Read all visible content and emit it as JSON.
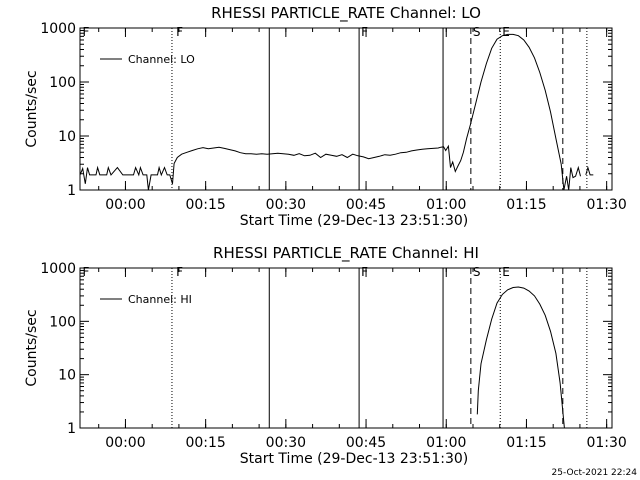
{
  "timestamp": "25-Oct-2021 22:24",
  "chart_data": [
    {
      "type": "line",
      "title": "RHESSI PARTICLE_RATE Channel: LO",
      "xlabel": "Start Time (29-Dec-13 23:51:30)",
      "ylabel": "Counts/sec",
      "y_scale": "log",
      "ylim": [
        1,
        1000
      ],
      "y_ticks": [
        "1",
        "10",
        "100",
        "1000"
      ],
      "x_ticks": [
        "00:00",
        "00:15",
        "00:30",
        "00:45",
        "01:00",
        "01:15",
        "01:30"
      ],
      "x_tick_minutes": [
        8.5,
        23.5,
        38.5,
        53.5,
        68.5,
        83.5,
        98.5
      ],
      "xlim_minutes": [
        0,
        99.5
      ],
      "legend": {
        "label": "Channel: LO",
        "position": "top-left"
      },
      "markers": [
        {
          "label": "F",
          "minute": 0.1,
          "style": "none"
        },
        {
          "label": "",
          "minute": 17.2,
          "style": "dotted"
        },
        {
          "label": "F",
          "minute": 17.6,
          "style": "none"
        },
        {
          "label": "",
          "minute": 35.4,
          "style": "solid"
        },
        {
          "label": "F",
          "minute": 52.2,
          "style": "solid"
        },
        {
          "label": "",
          "minute": 67.9,
          "style": "solid"
        },
        {
          "label": "S",
          "minute": 73.1,
          "style": "dashed"
        },
        {
          "label": "E",
          "minute": 78.6,
          "style": "dotted"
        },
        {
          "label": "",
          "minute": 90.3,
          "style": "dashed"
        },
        {
          "label": "",
          "minute": 94.8,
          "style": "dotted"
        }
      ],
      "series": [
        {
          "name": "Channel: LO",
          "segments": [
            [
              [
                0,
                1.9
              ],
              [
                0.5,
                2.5
              ],
              [
                1,
                1.3
              ],
              [
                1.4,
                2.6
              ],
              [
                1.8,
                1.9
              ],
              [
                3,
                1.9
              ],
              [
                3.3,
                2.6
              ],
              [
                3.7,
                1.9
              ],
              [
                5,
                1.9
              ],
              [
                5.3,
                2.6
              ],
              [
                5.8,
                1.9
              ],
              [
                7,
                2.6
              ],
              [
                8,
                1.9
              ],
              [
                10,
                1.9
              ],
              [
                10.4,
                2.6
              ],
              [
                11,
                1.9
              ],
              [
                11.3,
                2.6
              ],
              [
                11.8,
                1.9
              ],
              [
                12.5,
                1.9
              ],
              [
                12.8,
                1
              ],
              [
                13.3,
                1.9
              ],
              [
                14.5,
                1.9
              ],
              [
                14.8,
                2.6
              ],
              [
                15.2,
                1.9
              ],
              [
                15.8,
                2.6
              ],
              [
                16.3,
                1.9
              ],
              [
                16.8,
                1.9
              ],
              [
                17.3,
                1.3
              ],
              [
                17.6,
                3.1
              ],
              [
                18.2,
                4.0
              ],
              [
                19,
                4.6
              ],
              [
                20,
                5.0
              ],
              [
                21,
                5.4
              ],
              [
                22,
                5.8
              ],
              [
                23,
                6.1
              ],
              [
                24,
                5.8
              ],
              [
                25,
                6.0
              ],
              [
                26,
                6.2
              ],
              [
                27,
                5.9
              ],
              [
                28,
                5.6
              ],
              [
                29,
                5.3
              ],
              [
                30,
                4.9
              ],
              [
                31,
                4.7
              ],
              [
                32,
                4.7
              ],
              [
                33,
                4.6
              ],
              [
                34,
                4.7
              ],
              [
                35,
                4.6
              ],
              [
                36,
                4.7
              ],
              [
                37,
                4.8
              ],
              [
                38,
                4.7
              ],
              [
                39,
                4.6
              ],
              [
                40,
                4.4
              ],
              [
                41,
                4.7
              ],
              [
                42,
                4.3
              ],
              [
                43,
                4.4
              ],
              [
                44,
                4.8
              ],
              [
                45,
                4.0
              ],
              [
                46,
                4.6
              ],
              [
                47,
                4.4
              ],
              [
                48,
                4.2
              ],
              [
                49,
                4.5
              ],
              [
                50,
                4.0
              ],
              [
                51,
                4.6
              ],
              [
                52,
                4.3
              ],
              [
                53,
                4.1
              ],
              [
                54,
                3.8
              ],
              [
                55,
                4.0
              ],
              [
                56,
                4.2
              ],
              [
                57,
                4.5
              ],
              [
                58,
                4.4
              ],
              [
                59,
                4.6
              ],
              [
                60,
                4.9
              ],
              [
                61,
                5.0
              ],
              [
                62,
                5.3
              ],
              [
                63,
                5.5
              ],
              [
                64,
                5.7
              ],
              [
                65,
                5.8
              ],
              [
                66,
                5.9
              ],
              [
                67,
                6.0
              ],
              [
                67.5,
                6.2
              ],
              [
                68,
                6.3
              ],
              [
                68.4,
                5.4
              ],
              [
                68.9,
                6.5
              ],
              [
                69.3,
                2.6
              ],
              [
                69.7,
                3.3
              ],
              [
                70.2,
                2.2
              ],
              [
                70.7,
                2.8
              ],
              [
                71.2,
                3.5
              ],
              [
                71.7,
                5
              ],
              [
                72.3,
                9
              ],
              [
                73,
                16
              ],
              [
                74,
                40
              ],
              [
                75,
                100
              ],
              [
                76,
                220
              ],
              [
                77,
                420
              ],
              [
                78,
                620
              ],
              [
                79,
                720
              ],
              [
                80,
                760
              ],
              [
                81,
                760
              ],
              [
                82,
                720
              ],
              [
                83,
                600
              ],
              [
                84,
                440
              ],
              [
                85,
                280
              ],
              [
                86,
                150
              ],
              [
                87,
                70
              ],
              [
                88,
                28
              ],
              [
                89,
                9
              ],
              [
                90,
                3
              ],
              [
                90.5,
                1
              ],
              [
                91,
                1.8
              ],
              [
                91.4,
                1
              ],
              [
                91.8,
                2.6
              ],
              [
                92.2,
                1.7
              ],
              [
                92.7,
                1.8
              ],
              [
                93.2,
                2.6
              ],
              [
                93.6,
                1.8
              ]
            ],
            [
              [
                94.6,
                1.9
              ],
              [
                95.0,
                2.6
              ],
              [
                95.4,
                1.9
              ],
              [
                96.0,
                1.9
              ]
            ]
          ]
        }
      ]
    },
    {
      "type": "line",
      "title": "RHESSI PARTICLE_RATE Channel: HI",
      "xlabel": "Start Time (29-Dec-13 23:51:30)",
      "ylabel": "Counts/sec",
      "y_scale": "log",
      "ylim": [
        1,
        1000
      ],
      "y_ticks": [
        "1",
        "10",
        "100",
        "1000"
      ],
      "x_ticks": [
        "00:00",
        "00:15",
        "00:30",
        "00:45",
        "01:00",
        "01:15",
        "01:30"
      ],
      "x_tick_minutes": [
        8.5,
        23.5,
        38.5,
        53.5,
        68.5,
        83.5,
        98.5
      ],
      "xlim_minutes": [
        0,
        99.5
      ],
      "legend": {
        "label": "Channel: HI",
        "position": "top-left"
      },
      "markers": [
        {
          "label": "F",
          "minute": 0.1,
          "style": "none"
        },
        {
          "label": "",
          "minute": 17.2,
          "style": "dotted"
        },
        {
          "label": "F",
          "minute": 17.6,
          "style": "none"
        },
        {
          "label": "",
          "minute": 35.4,
          "style": "solid"
        },
        {
          "label": "F",
          "minute": 52.2,
          "style": "solid"
        },
        {
          "label": "",
          "minute": 67.9,
          "style": "solid"
        },
        {
          "label": "S",
          "minute": 73.1,
          "style": "dashed"
        },
        {
          "label": "E",
          "minute": 78.6,
          "style": "dotted"
        },
        {
          "label": "",
          "minute": 90.3,
          "style": "dashed"
        },
        {
          "label": "",
          "minute": 94.8,
          "style": "dotted"
        }
      ],
      "series": [
        {
          "name": "Channel: HI",
          "segments": [
            [
              [
                74.3,
                1.8
              ],
              [
                74.5,
                5
              ],
              [
                75,
                16
              ],
              [
                76,
                45
              ],
              [
                77,
                110
              ],
              [
                78,
                220
              ],
              [
                79,
                320
              ],
              [
                80,
                390
              ],
              [
                81,
                430
              ],
              [
                82,
                440
              ],
              [
                83,
                420
              ],
              [
                84,
                370
              ],
              [
                85,
                300
              ],
              [
                86,
                210
              ],
              [
                87,
                130
              ],
              [
                88,
                65
              ],
              [
                89,
                25
              ],
              [
                89.8,
                7
              ],
              [
                90.6,
                1
              ]
            ]
          ]
        }
      ]
    }
  ]
}
